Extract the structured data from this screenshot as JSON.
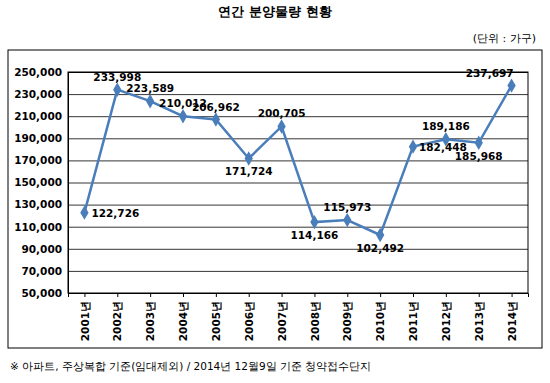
{
  "chart_data": {
    "type": "line",
    "title": "연간 분양물량 현황",
    "subtitle": "(단위 : 가구)",
    "annotations": [
      "※ 아파트, 주상복합 기준(임대제외) / 2014년 12월9일 기준 청약접수단지"
    ],
    "categories": [
      "2001년",
      "2002년",
      "2003년",
      "2004년",
      "2005년",
      "2006년",
      "2007년",
      "2008년",
      "2009년",
      "2010년",
      "2011년",
      "2012년",
      "2013년",
      "2014년"
    ],
    "values": [
      122726,
      233998,
      223589,
      210012,
      206962,
      171724,
      200705,
      114166,
      115973,
      102492,
      182448,
      189186,
      185968,
      237697
    ],
    "value_labels": [
      "122,726",
      "233,998",
      "223,589",
      "210,012",
      "206,962",
      "171,724",
      "200,705",
      "114,166",
      "115,973",
      "102,492",
      "182,448",
      "189,186",
      "185,968",
      "237,697"
    ],
    "color": "#4a7ebb",
    "marker": "diamond",
    "data_labels": true,
    "grid": true,
    "ylim": [
      50000,
      250000
    ],
    "yticks": [
      {
        "value": 50000,
        "label": "50,000"
      },
      {
        "value": 70000,
        "label": "70,000"
      },
      {
        "value": 90000,
        "label": "90,000"
      },
      {
        "value": 110000,
        "label": "110,000"
      },
      {
        "value": 130000,
        "label": "130,000"
      },
      {
        "value": 150000,
        "label": "150,000"
      },
      {
        "value": 170000,
        "label": "170,000"
      },
      {
        "value": 190000,
        "label": "190,000"
      },
      {
        "value": 210000,
        "label": "210,000"
      },
      {
        "value": 230000,
        "label": "230,000"
      },
      {
        "value": 250000,
        "label": "250,000"
      }
    ]
  }
}
